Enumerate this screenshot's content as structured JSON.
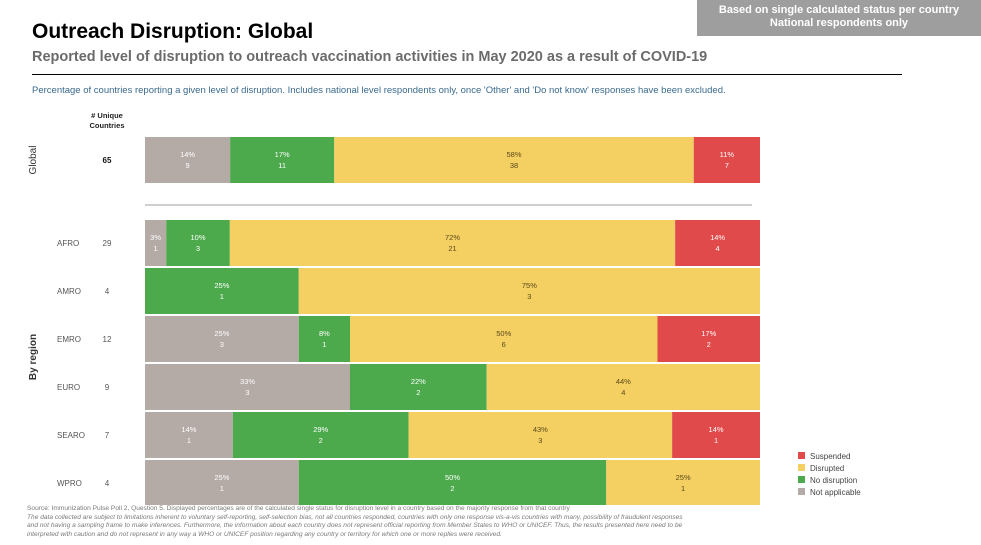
{
  "header": {
    "title": "Outreach Disruption: Global",
    "subtitle": "Reported level of disruption to outreach vaccination activities in May 2020 as a result of COVID-19",
    "badge_line1": "Based on single calculated status per country",
    "badge_line2": "National respondents only",
    "description": "Percentage of countries reporting a given level of disruption. Includes national level respondents only, once 'Other' and 'Do not know' responses have been excluded."
  },
  "chart_data": {
    "type": "bar",
    "orientation": "horizontal",
    "stacked": true,
    "normalized": true,
    "count_header": "# Unique Countries",
    "groups": [
      {
        "label": "Global",
        "rows": [
          "Global"
        ]
      },
      {
        "label": "By region",
        "rows": [
          "AFRO",
          "AMRO",
          "EMRO",
          "EURO",
          "SEARO",
          "WPRO"
        ]
      }
    ],
    "categories": [
      "Global",
      "AFRO",
      "AMRO",
      "EMRO",
      "EURO",
      "SEARO",
      "WPRO"
    ],
    "row_labels": [
      "",
      "AFRO",
      "AMRO",
      "EMRO",
      "EURO",
      "SEARO",
      "WPRO"
    ],
    "country_counts": [
      65,
      29,
      4,
      12,
      9,
      7,
      4
    ],
    "series_by_row": [
      [
        {
          "series": "Not applicable",
          "pct": "14%",
          "count": 9
        },
        {
          "series": "No disruption",
          "pct": "17%",
          "count": 11
        },
        {
          "series": "Disrupted",
          "pct": "58%",
          "count": 38
        },
        {
          "series": "Suspended",
          "pct": "11%",
          "count": 7
        }
      ],
      [
        {
          "series": "Not applicable",
          "pct": "3%",
          "count": 1
        },
        {
          "series": "No disruption",
          "pct": "10%",
          "count": 3
        },
        {
          "series": "Disrupted",
          "pct": "72%",
          "count": 21
        },
        {
          "series": "Suspended",
          "pct": "14%",
          "count": 4
        }
      ],
      [
        {
          "series": "No disruption",
          "pct": "25%",
          "count": 1
        },
        {
          "series": "Disrupted",
          "pct": "75%",
          "count": 3
        }
      ],
      [
        {
          "series": "Not applicable",
          "pct": "25%",
          "count": 3
        },
        {
          "series": "No disruption",
          "pct": "8%",
          "count": 1
        },
        {
          "series": "Disrupted",
          "pct": "50%",
          "count": 6
        },
        {
          "series": "Suspended",
          "pct": "17%",
          "count": 2
        }
      ],
      [
        {
          "series": "Not applicable",
          "pct": "33%",
          "count": 3
        },
        {
          "series": "No disruption",
          "pct": "22%",
          "count": 2
        },
        {
          "series": "Disrupted",
          "pct": "44%",
          "count": 4
        }
      ],
      [
        {
          "series": "Not applicable",
          "pct": "14%",
          "count": 1
        },
        {
          "series": "No disruption",
          "pct": "29%",
          "count": 2
        },
        {
          "series": "Disrupted",
          "pct": "43%",
          "count": 3
        },
        {
          "series": "Suspended",
          "pct": "14%",
          "count": 1
        }
      ],
      [
        {
          "series": "Not applicable",
          "pct": "25%",
          "count": 1
        },
        {
          "series": "No disruption",
          "pct": "50%",
          "count": 2
        },
        {
          "series": "Disrupted",
          "pct": "25%",
          "count": 1
        }
      ]
    ],
    "legend": [
      {
        "name": "Suspended",
        "color": "#e04a4a"
      },
      {
        "name": "Disrupted",
        "color": "#f4cf61"
      },
      {
        "name": "No disruption",
        "color": "#4caa4c"
      },
      {
        "name": "Not applicable",
        "color": "#b4aaa6"
      }
    ],
    "legend_position": "bottom-right",
    "grid": false
  },
  "footer": {
    "source": "Source: Immunization Pulse Poll 2, Question 5. Displayed percentages are of the calculated single status for disruption level in a country based on the majority response from that country",
    "note_line1": "The data collected are subject to limitations inherent to voluntary self-reporting, self-selection bias, not all countries responded, countries with only one response vis-a-vis countries with many, possibility of fraudulent responses",
    "note_line2": "and not having a sampling frame to make inferences. Furthermore, the information about each country does not represent official reporting from Member States to WHO or UNICEF. Thus, the results presented here need to be",
    "note_line3": "interpreted with caution and do not represent in any way a WHO or UNICEF position regarding any country or territory for which one or more replies were received."
  }
}
